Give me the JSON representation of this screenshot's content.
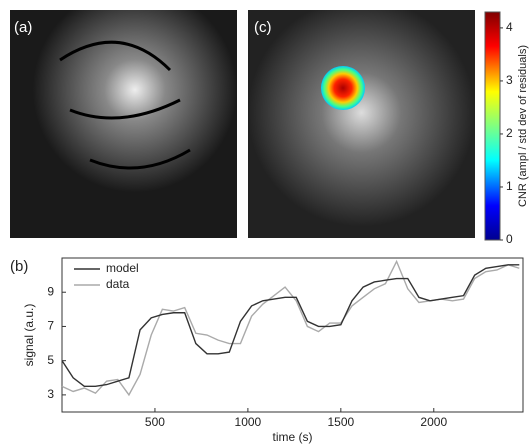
{
  "chart_data": [
    {
      "type": "image",
      "label": "(a)"
    },
    {
      "type": "image",
      "label": "(c)"
    },
    {
      "type": "colorbar",
      "ylabel": "CNR (ampl / std dev of residuals)",
      "ylim": [
        0,
        4.3
      ],
      "yticks": [
        0,
        1,
        2,
        3,
        4
      ]
    },
    {
      "type": "line",
      "label": "(b)",
      "xlabel": "time (s)",
      "ylabel": "signal (a.u.)",
      "xlim": [
        0,
        2480
      ],
      "xticks": [
        500,
        1000,
        1500,
        2000
      ],
      "ylim": [
        2,
        11
      ],
      "yticks": [
        3,
        5,
        7,
        9
      ],
      "x": [
        0,
        60,
        120,
        180,
        240,
        300,
        360,
        420,
        480,
        540,
        600,
        660,
        720,
        780,
        840,
        900,
        960,
        1020,
        1080,
        1140,
        1200,
        1260,
        1320,
        1380,
        1440,
        1500,
        1560,
        1620,
        1680,
        1740,
        1800,
        1860,
        1920,
        1980,
        2040,
        2100,
        2160,
        2220,
        2280,
        2340,
        2400,
        2460
      ],
      "series": [
        {
          "name": "model",
          "color": "#333333",
          "values": [
            5,
            4,
            3.5,
            3.5,
            3.6,
            3.8,
            4,
            6.8,
            7.5,
            7.7,
            7.8,
            7.8,
            6,
            5.4,
            5.4,
            5.5,
            7.3,
            8.2,
            8.5,
            8.6,
            8.7,
            8.7,
            7.3,
            7,
            7,
            7.1,
            8.5,
            9.3,
            9.6,
            9.7,
            9.8,
            9.8,
            8.7,
            8.5,
            8.6,
            8.7,
            8.8,
            10,
            10.4,
            10.5,
            10.6,
            10.6
          ]
        },
        {
          "name": "data",
          "color": "#aaaaaa",
          "values": [
            3.5,
            3.2,
            3.4,
            3.1,
            3.8,
            3.9,
            3,
            4.2,
            6.5,
            8,
            7.9,
            8.1,
            6.6,
            6.5,
            6.2,
            6,
            6,
            7.6,
            8.3,
            8.8,
            9.3,
            8.5,
            7,
            6.7,
            7.2,
            7.2,
            8.2,
            8.7,
            9.2,
            9.5,
            10.8,
            9.2,
            8.4,
            8.5,
            8.6,
            8.5,
            8.6,
            9.8,
            10.2,
            10.3,
            10.6,
            10.4
          ]
        }
      ]
    }
  ]
}
